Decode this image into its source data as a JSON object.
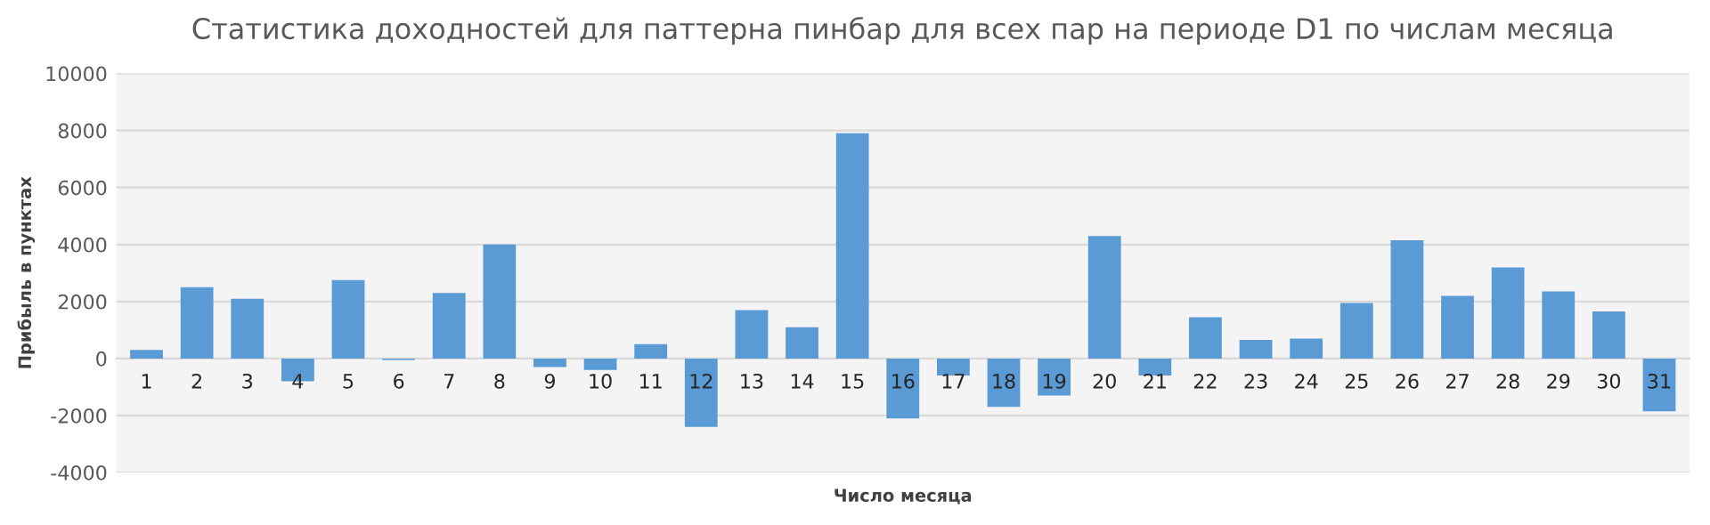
{
  "chart_data": {
    "type": "bar",
    "title": "Статистика доходностей для паттерна пинбар для всех пар на периоде D1 по числам месяца",
    "xlabel": "Число месяца",
    "ylabel": "Прибыль в пунктах",
    "categories": [
      "1",
      "2",
      "3",
      "4",
      "5",
      "6",
      "7",
      "8",
      "9",
      "10",
      "11",
      "12",
      "13",
      "14",
      "15",
      "16",
      "17",
      "18",
      "19",
      "20",
      "21",
      "22",
      "23",
      "24",
      "25",
      "26",
      "27",
      "28",
      "29",
      "30",
      "31"
    ],
    "values": [
      300,
      2500,
      2100,
      -800,
      2750,
      -50,
      2300,
      4000,
      -300,
      -400,
      500,
      -2400,
      1700,
      1100,
      7900,
      -2100,
      -600,
      -1700,
      -1300,
      4300,
      -600,
      1450,
      650,
      700,
      1950,
      4150,
      2200,
      3200,
      2350,
      1650,
      -1850
    ],
    "color": "#5b9bd5",
    "ylim": [
      -4000,
      10000
    ],
    "yticks": [
      -4000,
      -2000,
      0,
      2000,
      4000,
      6000,
      8000,
      10000
    ],
    "grid": "y",
    "legend": false
  }
}
